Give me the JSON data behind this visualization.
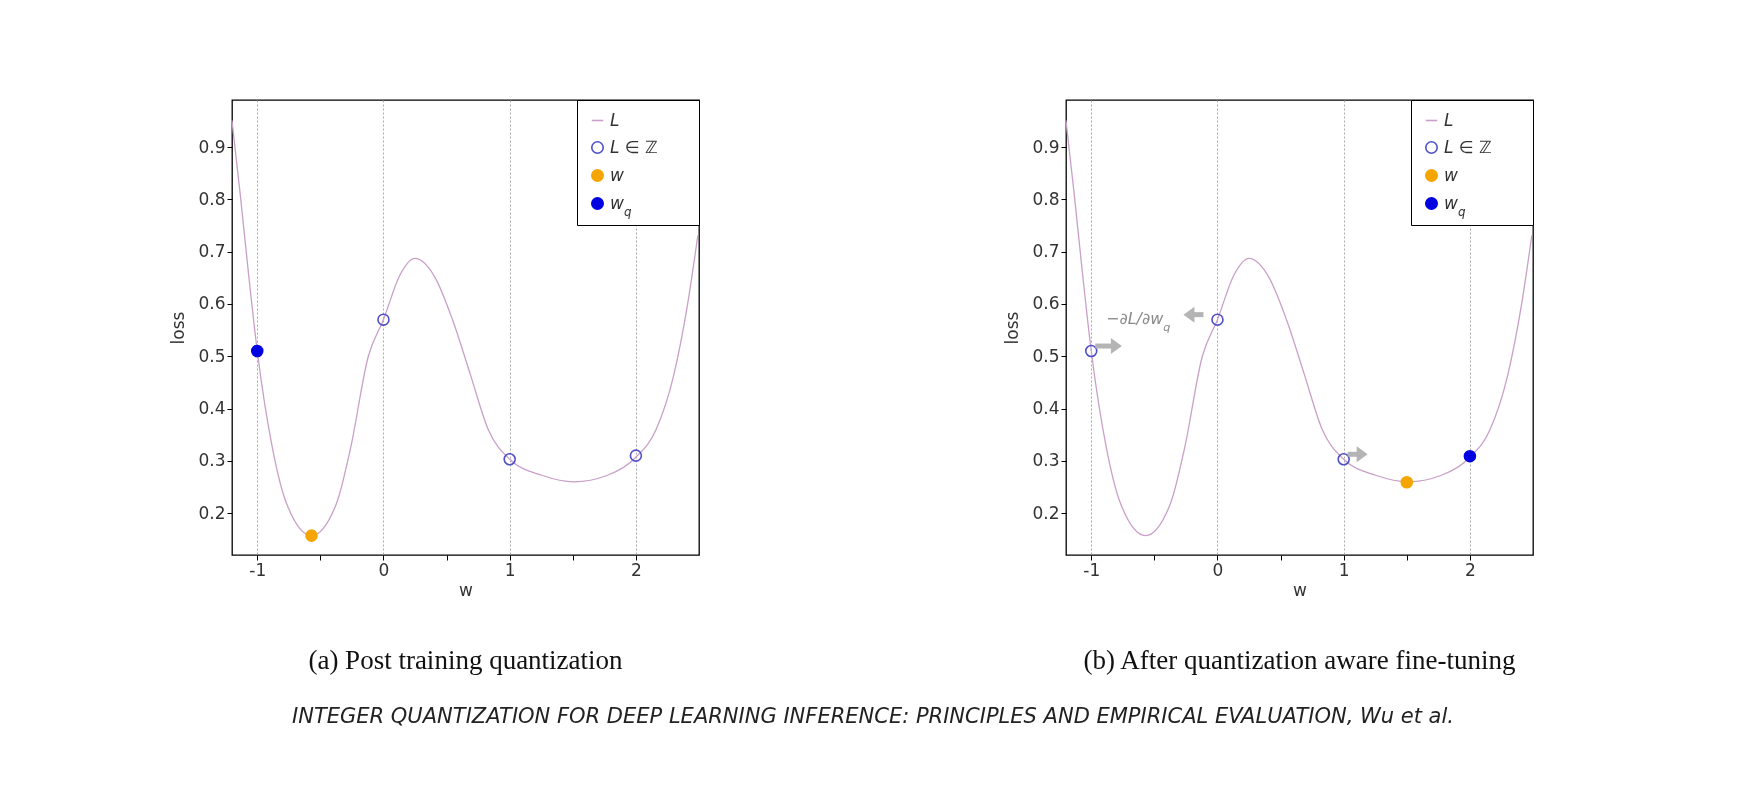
{
  "chart_data": [
    {
      "type": "line",
      "title": "(a) Post training quantization",
      "xlabel": "w",
      "ylabel": "loss",
      "xlim": [
        -1.2,
        2.5
      ],
      "ylim": [
        0.12,
        0.99
      ],
      "xticks": [
        -1,
        {
          "value": -0.5,
          "label": null
        },
        0,
        {
          "value": 0.5,
          "label": null
        },
        1,
        {
          "value": 1.5,
          "label": null
        },
        2
      ],
      "yticks": [
        0.2,
        0.3,
        0.4,
        0.5,
        0.6,
        0.7,
        0.8,
        0.9
      ],
      "grid": "x",
      "legend": "top right",
      "series": [
        {
          "name": "L",
          "type": "line",
          "color": "#c8a0c8",
          "x": [
            -1.2,
            -1.135,
            -1.07,
            -1,
            -0.88,
            -0.77,
            -0.57,
            -0.37,
            -0.26,
            -0.12,
            0,
            0.13,
            0.25,
            0.41,
            0.55,
            0.69,
            0.83,
            1,
            1.26,
            1.51,
            1.77,
            2,
            2.16,
            2.3,
            2.41,
            2.49
          ],
          "values": [
            0.95,
            0.81,
            0.66,
            0.51,
            0.325,
            0.22,
            0.157,
            0.22,
            0.325,
            0.5,
            0.57,
            0.655,
            0.687,
            0.65,
            0.568,
            0.464,
            0.36,
            0.303,
            0.272,
            0.26,
            0.272,
            0.307,
            0.36,
            0.464,
            0.6,
            0.73
          ]
        },
        {
          "name": "L ∈ ℤ",
          "type": "scatter",
          "marker": "circle",
          "color": "#5050c8",
          "x": [
            0,
            1,
            2
          ],
          "values": [
            0.57,
            0.303,
            0.31
          ]
        },
        {
          "name": "w",
          "type": "scatter",
          "marker": "circle",
          "color": "#f5a500",
          "x": [
            -0.57
          ],
          "values": [
            0.157
          ]
        },
        {
          "name": "w$_{q}$",
          "type": "scatter",
          "marker": "circle",
          "color": "#0000e0",
          "x": [
            -1
          ],
          "values": [
            0.51
          ]
        }
      ]
    },
    {
      "type": "line",
      "title": "(b) After quantization aware fine-tuning",
      "xlabel": "w",
      "ylabel": "loss",
      "xlim": [
        -1.2,
        2.5
      ],
      "ylim": [
        0.12,
        0.99
      ],
      "xticks": [
        -1,
        {
          "value": -0.5,
          "label": null
        },
        0,
        {
          "value": 0.5,
          "label": null
        },
        1,
        {
          "value": 1.5,
          "label": null
        },
        2
      ],
      "yticks": [
        0.2,
        0.3,
        0.4,
        0.5,
        0.6,
        0.7,
        0.8,
        0.9
      ],
      "grid": "x",
      "legend": "top right",
      "series": [
        {
          "name": "L",
          "type": "line",
          "color": "#c8a0c8",
          "x": [
            -1.2,
            -1.135,
            -1.07,
            -1,
            -0.88,
            -0.77,
            -0.57,
            -0.37,
            -0.26,
            -0.12,
            0,
            0.13,
            0.25,
            0.41,
            0.55,
            0.69,
            0.83,
            1,
            1.26,
            1.51,
            1.77,
            2,
            2.16,
            2.3,
            2.41,
            2.49
          ],
          "values": [
            0.95,
            0.81,
            0.66,
            0.51,
            0.325,
            0.22,
            0.157,
            0.22,
            0.325,
            0.5,
            0.57,
            0.655,
            0.687,
            0.65,
            0.568,
            0.464,
            0.36,
            0.303,
            0.272,
            0.26,
            0.272,
            0.307,
            0.36,
            0.464,
            0.6,
            0.73
          ]
        },
        {
          "name": "L ∈ ℤ",
          "type": "scatter",
          "marker": "circle",
          "color": "#5050c8",
          "x": [
            -1,
            0,
            1
          ],
          "values": [
            0.51,
            0.57,
            0.303
          ]
        },
        {
          "name": "w",
          "type": "scatter",
          "marker": "circle",
          "color": "#f5a500",
          "x": [
            1.5
          ],
          "values": [
            0.259
          ]
        },
        {
          "name": "w$_{q}$",
          "type": "scatter",
          "marker": "circle",
          "color": "#0000e0",
          "x": [
            2
          ],
          "values": [
            0.309
          ]
        }
      ],
      "annotations": [
        "−∂L/∂w$_{q}$",
        "INTEGER QUANTIZATION FOR DEEP LEARNING INFERENCE: PRINCIPLES AND EMPIRICAL EVALUATION, Wu et al."
      ]
    }
  ]
}
